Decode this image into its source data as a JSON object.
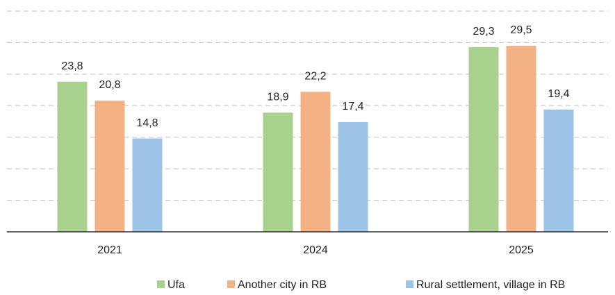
{
  "chart_data": {
    "type": "bar",
    "categories": [
      "2021",
      "2024",
      "2025"
    ],
    "series": [
      {
        "name": "Ufa",
        "color": "#a9d18e",
        "values": [
          23.8,
          18.9,
          29.3
        ],
        "value_labels": [
          "23,8",
          "18,9",
          "29,3"
        ]
      },
      {
        "name": "Another city in RB",
        "color": "#f4b183",
        "values": [
          20.8,
          22.2,
          29.5
        ],
        "value_labels": [
          "20,8",
          "22,2",
          "29,5"
        ]
      },
      {
        "name": "Rural settlement, village in RB",
        "color": "#9dc3e6",
        "values": [
          14.8,
          17.4,
          19.4
        ],
        "value_labels": [
          "14,8",
          "17,4",
          "19,4"
        ]
      }
    ],
    "ylim": [
      0,
      35
    ],
    "yticks": [
      0,
      5,
      10,
      15,
      20,
      25,
      30,
      35
    ],
    "grid": true
  }
}
